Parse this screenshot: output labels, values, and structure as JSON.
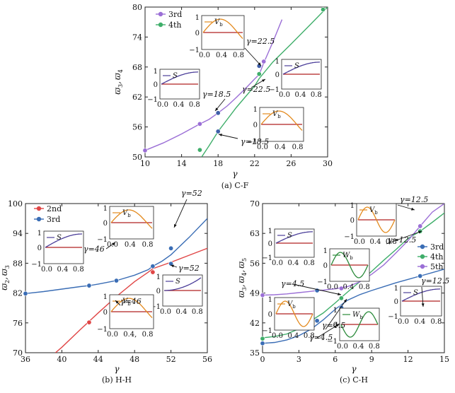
{
  "chart_data": [
    {
      "type": "line",
      "caption": "(a) C-F",
      "xlabel": "γ",
      "ylabel": "ϖ3, ϖ4",
      "xlim": [
        10,
        30
      ],
      "ylim": [
        50,
        80
      ],
      "xticks": [
        10,
        14,
        18,
        22,
        26,
        30
      ],
      "yticks": [
        50,
        56,
        62,
        68,
        74,
        80
      ],
      "legend_position": "top-left",
      "series": [
        {
          "name": "3rd",
          "color": "#9b6fd6",
          "x": [
            10,
            12,
            14,
            16,
            17,
            18,
            19,
            20,
            21,
            22,
            22.5,
            23,
            24,
            25
          ],
          "y": [
            51.3,
            52.8,
            54.6,
            56.6,
            57.5,
            58.8,
            60.2,
            61.9,
            63.7,
            65.6,
            66.5,
            68.8,
            73,
            77.5
          ]
        },
        {
          "name": "4th",
          "color": "#3fae6a",
          "x": [
            16.2,
            17,
            18,
            20,
            22,
            22.5,
            24,
            26,
            28,
            29.5,
            30
          ],
          "y": [
            50,
            52.2,
            55.1,
            59.9,
            64.2,
            65.7,
            69,
            72.6,
            76.3,
            79.1,
            80
          ]
        }
      ],
      "markers": [
        {
          "x": 10,
          "y": 51.3,
          "color": "#9b6fd6"
        },
        {
          "x": 16,
          "y": 56.6,
          "color": "#9b6fd6"
        },
        {
          "x": 18,
          "y": 58.8,
          "color": "#3e5fa8"
        },
        {
          "x": 22.5,
          "y": 68.2,
          "color": "#3e5fa8"
        },
        {
          "x": 23,
          "y": 69.1,
          "color": "#9b6fd6"
        },
        {
          "x": 16,
          "y": 51.4,
          "color": "#3fae6a"
        },
        {
          "x": 18,
          "y": 55.1,
          "color": "#3e5fa8"
        },
        {
          "x": 22.5,
          "y": 66.6,
          "color": "#3fae6a"
        },
        {
          "x": 29.5,
          "y": 79.5,
          "color": "#3fae6a"
        }
      ],
      "annotations": [
        "γ=22.5",
        "γ=18.5",
        "γ=22.5",
        "γ=18.5"
      ],
      "insets": [
        {
          "label": "Vb",
          "xticks": [
            "0.0",
            "0.4",
            "0.8"
          ],
          "yticks": [
            "1",
            "0",
            "−1"
          ]
        },
        {
          "label": "S",
          "xticks": [
            "0.0",
            "0.4",
            "0.8"
          ],
          "yticks": [
            "1",
            "0",
            "−1"
          ]
        },
        {
          "label": "S",
          "xticks": [
            "0.0",
            "0.4",
            "0.8"
          ],
          "yticks": [
            "1",
            "0",
            "−1"
          ]
        },
        {
          "label": "Vb",
          "xticks": [
            "0.0",
            "0.4",
            "0.8"
          ],
          "yticks": [
            "1",
            "0",
            "−1"
          ]
        }
      ]
    },
    {
      "type": "line",
      "caption": "(b) H-H",
      "xlabel": "γ",
      "ylabel": "ϖ2, ϖ3",
      "xlim": [
        36,
        56
      ],
      "ylim": [
        70,
        100
      ],
      "xticks": [
        36,
        40,
        44,
        48,
        52,
        56
      ],
      "yticks": [
        70,
        76,
        82,
        88,
        94,
        100
      ],
      "legend_position": "top-left",
      "series": [
        {
          "name": "2nd",
          "color": "#e04646",
          "x": [
            39.3,
            40,
            42,
            44,
            46,
            48,
            49.5,
            50,
            52,
            54,
            56
          ],
          "y": [
            70,
            71.1,
            74.6,
            78,
            81.3,
            84.3,
            86.2,
            86.9,
            88.2,
            89.6,
            91
          ]
        },
        {
          "name": "3rd",
          "color": "#3a6db5",
          "x": [
            36,
            38,
            40,
            42,
            43,
            44,
            46,
            48,
            49.5,
            50,
            51,
            52,
            54,
            56
          ],
          "y": [
            81.9,
            82.3,
            82.8,
            83.3,
            83.5,
            83.8,
            84.5,
            85.6,
            86.7,
            87.4,
            88.4,
            89.7,
            93.2,
            97
          ]
        }
      ],
      "markers": [
        {
          "x": 36,
          "y": 81.9,
          "color": "#3a6db5"
        },
        {
          "x": 43,
          "y": 83.5,
          "color": "#3a6db5"
        },
        {
          "x": 46,
          "y": 84.5,
          "color": "#3a6db5"
        },
        {
          "x": 50,
          "y": 87.4,
          "color": "#3a6db5"
        },
        {
          "x": 52,
          "y": 91,
          "color": "#3a6db5"
        },
        {
          "x": 43,
          "y": 76.1,
          "color": "#e04646"
        },
        {
          "x": 46,
          "y": 80.7,
          "color": "#3a6db5"
        },
        {
          "x": 50,
          "y": 86.2,
          "color": "#e04646"
        },
        {
          "x": 52,
          "y": 87.9,
          "color": "#3a6db5"
        }
      ],
      "annotations": [
        "γ=52",
        "γ=46",
        "γ=52",
        "γ=46"
      ],
      "insets": [
        {
          "label": "Vb",
          "xticks": [
            "0.0",
            "0.4",
            "0.8"
          ],
          "yticks": [
            "1",
            "0",
            "−1"
          ]
        },
        {
          "label": "S",
          "xticks": [
            "0.0",
            "0.4",
            "0.8"
          ],
          "yticks": [
            "1",
            "0",
            "−1"
          ]
        },
        {
          "label": "S",
          "xticks": [
            "0.0",
            "0.4",
            "0.8"
          ],
          "yticks": [
            "1",
            "0",
            "−1"
          ]
        },
        {
          "label": "Vb",
          "xticks": [
            "0.0",
            "0.4,",
            "0.8"
          ],
          "yticks": [
            "1",
            "0",
            "−1"
          ]
        }
      ]
    },
    {
      "type": "line",
      "caption": "(c) C-H",
      "xlabel": "γ",
      "ylabel": "ϖ3, ϖ4, ϖ5",
      "xlim": [
        0,
        15
      ],
      "ylim": [
        35,
        70
      ],
      "xticks": [
        0,
        3,
        6,
        9,
        12,
        15
      ],
      "yticks": [
        35,
        42,
        49,
        56,
        63,
        70
      ],
      "legend_position": "right",
      "series": [
        {
          "name": "3rd",
          "color": "#3a6db5",
          "x": [
            0,
            1,
            2,
            3,
            4,
            5,
            6,
            7,
            8,
            9,
            10,
            11,
            12,
            13,
            14,
            15
          ],
          "y": [
            37.2,
            37.4,
            38,
            39,
            40.5,
            42.7,
            45.2,
            47.3,
            48.6,
            49.6,
            50.5,
            51.4,
            52.2,
            53,
            53.8,
            54.6
          ]
        },
        {
          "name": "4th",
          "color": "#3fae6a",
          "x": [
            0,
            1,
            2,
            3,
            4,
            5,
            6,
            7,
            8,
            9,
            10,
            11,
            12,
            13,
            14,
            15
          ],
          "y": [
            38.5,
            38.8,
            39.4,
            40.6,
            42.5,
            44.3,
            46.7,
            49.2,
            51.6,
            54.1,
            56.7,
            59.2,
            61.8,
            63.5,
            65.6,
            67.8
          ]
        },
        {
          "name": "5th",
          "color": "#9b6fd6",
          "x": [
            0,
            1,
            2,
            3,
            4,
            4.5,
            5,
            6,
            7,
            8,
            9,
            10,
            11,
            12,
            13,
            14,
            15
          ],
          "y": [
            48.5,
            48.6,
            48.8,
            49.1,
            49.4,
            49.6,
            49.7,
            50,
            50.5,
            51.6,
            53.4,
            55.6,
            58.4,
            61.3,
            64.7,
            68,
            70
          ]
        }
      ],
      "markers": [
        {
          "x": 0,
          "y": 48.5,
          "color": "#9b6fd6"
        },
        {
          "x": 4.5,
          "y": 49.6,
          "color": "#3a6db5"
        },
        {
          "x": 6.5,
          "y": 50.1,
          "color": "#9b6fd6"
        },
        {
          "x": 13,
          "y": 64.7,
          "color": "#9b6fd6"
        },
        {
          "x": 13,
          "y": 63.5,
          "color": "#3fae6a"
        },
        {
          "x": 4.5,
          "y": 42.5,
          "color": "#3a6db5"
        },
        {
          "x": 6.5,
          "y": 45.6,
          "color": "#3a6db5"
        },
        {
          "x": 6.5,
          "y": 47.8,
          "color": "#3fae6a"
        },
        {
          "x": 13,
          "y": 53,
          "color": "#3a6db5"
        },
        {
          "x": 0,
          "y": 38.3,
          "color": "#3fae6a"
        },
        {
          "x": 0,
          "y": 37.2,
          "color": "#3a6db5"
        }
      ],
      "annotations": [
        "γ=12.5",
        "γ=12.5",
        "γ=4.5",
        "γ=4.5",
        "γ=4.5",
        "γ=12.5"
      ],
      "insets": [
        {
          "label": "S",
          "xticks": [
            "0.0",
            "0.4",
            "0.8"
          ],
          "yticks": [
            "1",
            "0",
            "−1"
          ]
        },
        {
          "label": "Vb",
          "xticks": [
            "0.0",
            "0.4",
            "0.8"
          ],
          "yticks": [
            "1",
            "0",
            "−1"
          ]
        },
        {
          "label": "Wb",
          "xticks": [
            "0.0",
            "0.4",
            "0.8"
          ],
          "yticks": [
            "1",
            "0",
            "−1"
          ]
        },
        {
          "label": "Vb",
          "xticks": [
            "0.0",
            "0.4",
            "0.8"
          ],
          "yticks": [
            "1",
            "0",
            "−1"
          ]
        },
        {
          "label": "Wb",
          "xticks": [
            "0.0",
            "0.4",
            "0.8"
          ],
          "yticks": [
            "1",
            "0",
            "−1"
          ]
        },
        {
          "label": "S",
          "xticks": [
            "0.0",
            "0.4",
            "0.8"
          ],
          "yticks": [
            "1",
            "0",
            "−1"
          ]
        }
      ]
    }
  ]
}
